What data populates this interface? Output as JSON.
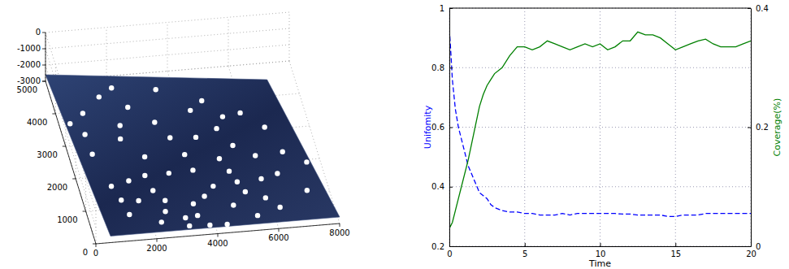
{
  "chart_data": [
    {
      "type": "scatter3d",
      "xlim": [
        0,
        8000
      ],
      "ylim": [
        0,
        5000
      ],
      "zlim": [
        -3000,
        0
      ],
      "xticks": [
        0,
        2000,
        4000,
        6000,
        8000
      ],
      "yticks": [
        0,
        1000,
        2000,
        3000,
        4000,
        5000
      ],
      "zticks": [
        -3000,
        -2000,
        -1000,
        0
      ],
      "grid": true,
      "color": "#ffffff",
      "marker": "circle",
      "x": [
        1980,
        3380,
        1490,
        2310,
        4740,
        4280,
        5250,
        3020,
        810,
        300,
        1880,
        3360,
        4190,
        5850,
        6490,
        6820,
        7490,
        5910,
        4730,
        3660,
        670,
        1760,
        2360,
        3770,
        4920,
        5070,
        5870,
        6440,
        7220,
        4260,
        5230,
        5820,
        2970,
        710,
        2180,
        1610,
        2290,
        1000,
        2580,
        3450,
        3880,
        4720,
        5390,
        6190,
        1180,
        1730,
        2480,
        3470,
        1300,
        3110,
        3770,
        4330,
        2250,
        3060,
        4940,
        5290
      ],
      "y": [
        4440,
        4280,
        4200,
        3820,
        3830,
        3570,
        3300,
        3300,
        3750,
        3470,
        3290,
        2800,
        2750,
        3370,
        2880,
        2100,
        1730,
        2050,
        2050,
        2260,
        3110,
        2890,
        2290,
        1770,
        1650,
        1310,
        1340,
        1460,
        880,
        1240,
        990,
        760,
        1740,
        2500,
        1730,
        1610,
        1260,
        1490,
        930,
        760,
        960,
        620,
        250,
        440,
        1050,
        990,
        600,
        400,
        600,
        110,
        80,
        60,
        290,
        360,
        2960,
        2410
      ],
      "z": [
        -2600,
        -2600,
        -2600,
        -2600,
        -2600,
        -2600,
        -2600,
        -2600,
        -2600,
        -2600,
        -2600,
        -2600,
        -2600,
        -2600,
        -2600,
        -2600,
        -2600,
        -2600,
        -2600,
        -2600,
        -2600,
        -2600,
        -2600,
        -2600,
        -2600,
        -2600,
        -2600,
        -2600,
        -2600,
        -2600,
        -2600,
        -2600,
        -2600,
        -2600,
        -2600,
        -2600,
        -2600,
        -2600,
        -2600,
        -2600,
        -2600,
        -2600,
        -2600,
        -2600,
        -2600,
        -2600,
        -2600,
        -2600,
        -2600,
        -2600,
        -2600,
        -2600,
        -2600,
        -2600,
        -2600,
        -2600
      ]
    },
    {
      "type": "line",
      "xlabel": "Time",
      "ylabel": "Unifomity",
      "y2label": "Coverage(%)",
      "xlim": [
        0,
        20
      ],
      "ylim": [
        0.2,
        1
      ],
      "y2lim": [
        0,
        0.4
      ],
      "xticks": [
        0,
        5,
        10,
        15,
        20
      ],
      "yticks": [
        0.2,
        0.4,
        0.6,
        0.8,
        1
      ],
      "y2ticks": [
        0,
        0.2,
        0.4
      ],
      "grid": true,
      "x": [
        0,
        0.1,
        0.2,
        0.4,
        0.6,
        0.8,
        1,
        1.25,
        1.5,
        1.75,
        2,
        2.25,
        2.5,
        2.75,
        3,
        3.5,
        4,
        4.5,
        5,
        5.5,
        6,
        6.5,
        7,
        7.5,
        8,
        8.5,
        9,
        9.5,
        10,
        10.5,
        11,
        11.5,
        12,
        12.5,
        13,
        13.5,
        14,
        14.5,
        15,
        15.5,
        16,
        16.5,
        17,
        17.5,
        18,
        18.5,
        19,
        19.5,
        20
      ],
      "series": [
        {
          "color": "#0000ff",
          "line_style": "dashed",
          "values": [
            0.93,
            0.85,
            0.76,
            0.66,
            0.6,
            0.56,
            0.52,
            0.47,
            0.44,
            0.41,
            0.38,
            0.37,
            0.36,
            0.34,
            0.33,
            0.32,
            0.315,
            0.315,
            0.31,
            0.31,
            0.305,
            0.305,
            0.305,
            0.31,
            0.305,
            0.31,
            0.31,
            0.31,
            0.31,
            0.31,
            0.31,
            0.308,
            0.308,
            0.305,
            0.305,
            0.305,
            0.305,
            0.3,
            0.3,
            0.305,
            0.305,
            0.305,
            0.31,
            0.31,
            0.31,
            0.31,
            0.31,
            0.31,
            0.31
          ]
        },
        {
          "color": "#008000",
          "line_style": "solid",
          "axis": "y2",
          "values": [
            0.03,
            0.035,
            0.04,
            0.06,
            0.08,
            0.1,
            0.12,
            0.145,
            0.175,
            0.205,
            0.235,
            0.255,
            0.27,
            0.28,
            0.29,
            0.3,
            0.32,
            0.335,
            0.335,
            0.33,
            0.335,
            0.345,
            0.34,
            0.335,
            0.33,
            0.335,
            0.34,
            0.335,
            0.34,
            0.33,
            0.335,
            0.345,
            0.345,
            0.36,
            0.355,
            0.355,
            0.35,
            0.34,
            0.33,
            0.335,
            0.34,
            0.345,
            0.348,
            0.34,
            0.335,
            0.335,
            0.335,
            0.34,
            0.345
          ]
        }
      ]
    }
  ]
}
